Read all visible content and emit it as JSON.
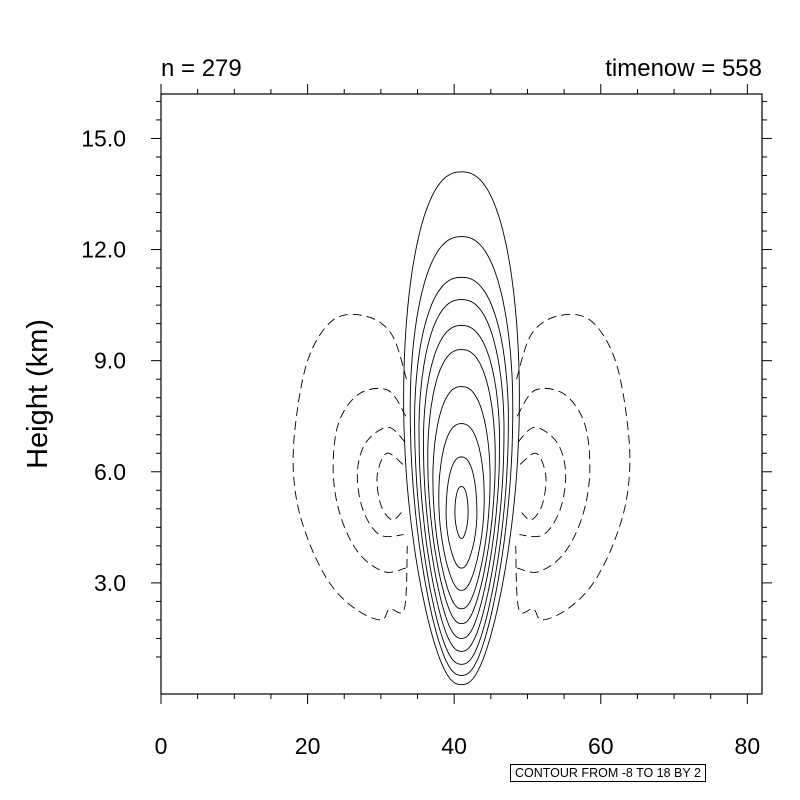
{
  "header": {
    "left_label": "n = 279",
    "right_label": "timenow = 558"
  },
  "contour_note": "CONTOUR FROM -8 TO 18 BY 2",
  "chart_data": {
    "type": "contour",
    "title": "",
    "xlabel": "",
    "ylabel": "Height (km)",
    "xlim": [
      0,
      82
    ],
    "ylim": [
      0.0,
      16.2
    ],
    "x_ticks": [
      {
        "value": 0,
        "label": "0"
      },
      {
        "value": 20,
        "label": "20"
      },
      {
        "value": 40,
        "label": "40"
      },
      {
        "value": 60,
        "label": "60"
      },
      {
        "value": 80,
        "label": "80"
      }
    ],
    "y_ticks": [
      {
        "value": 3.0,
        "label": "3.0"
      },
      {
        "value": 6.0,
        "label": "6.0"
      },
      {
        "value": 9.0,
        "label": "9.0"
      },
      {
        "value": 12.0,
        "label": "12.0"
      },
      {
        "value": 15.0,
        "label": "15.0"
      }
    ],
    "contour_levels": {
      "min": -8,
      "max": 18,
      "step": 2
    },
    "positive_contours": [
      {
        "cx": 41.0,
        "bottom": 0.25,
        "top": 14.1,
        "peak_h": 8.0,
        "half_width": 7.9
      },
      {
        "cx": 41.0,
        "bottom": 0.5,
        "top": 12.35,
        "peak_h": 7.7,
        "half_width": 7.0
      },
      {
        "cx": 41.0,
        "bottom": 0.8,
        "top": 11.25,
        "peak_h": 7.4,
        "half_width": 6.4
      },
      {
        "cx": 41.0,
        "bottom": 1.15,
        "top": 10.65,
        "peak_h": 7.1,
        "half_width": 5.8
      },
      {
        "cx": 41.0,
        "bottom": 1.5,
        "top": 9.95,
        "peak_h": 6.8,
        "half_width": 5.2
      },
      {
        "cx": 41.0,
        "bottom": 1.9,
        "top": 9.3,
        "peak_h": 6.4,
        "half_width": 4.6
      },
      {
        "cx": 41.0,
        "bottom": 2.3,
        "top": 8.3,
        "peak_h": 5.8,
        "half_width": 3.9
      },
      {
        "cx": 41.0,
        "bottom": 2.8,
        "top": 7.3,
        "peak_h": 5.3,
        "half_width": 3.1
      },
      {
        "cx": 41.0,
        "bottom": 3.4,
        "top": 6.4,
        "peak_h": 4.9,
        "half_width": 2.1
      },
      {
        "cx": 41.0,
        "bottom": 4.2,
        "top": 5.6,
        "peak_h": 4.9,
        "half_width": 0.9
      }
    ],
    "negative_contours": [
      [
        [
          33.5,
          8.5
        ],
        [
          31.5,
          9.7
        ],
        [
          28.0,
          10.2
        ],
        [
          23.5,
          10.1
        ],
        [
          20.0,
          9.0
        ],
        [
          18.2,
          7.0
        ],
        [
          18.3,
          5.5
        ],
        [
          20.0,
          4.2
        ],
        [
          23.0,
          3.0
        ],
        [
          26.5,
          2.3
        ],
        [
          30.0,
          2.0
        ],
        [
          31.2,
          2.3
        ],
        [
          33.2,
          2.3
        ],
        [
          33.6,
          4.0
        ]
      ],
      [
        [
          33.4,
          7.5
        ],
        [
          31.0,
          8.2
        ],
        [
          27.0,
          8.1
        ],
        [
          24.2,
          7.3
        ],
        [
          23.5,
          6.0
        ],
        [
          24.5,
          4.8
        ],
        [
          27.0,
          3.8
        ],
        [
          30.5,
          3.3
        ],
        [
          33.4,
          3.4
        ]
      ],
      [
        [
          33.3,
          6.8
        ],
        [
          31.0,
          7.2
        ],
        [
          28.0,
          6.8
        ],
        [
          26.8,
          6.0
        ],
        [
          27.5,
          5.0
        ],
        [
          29.8,
          4.3
        ],
        [
          33.1,
          4.3
        ]
      ],
      [
        [
          33.0,
          6.2
        ],
        [
          30.8,
          6.5
        ],
        [
          29.5,
          5.9
        ],
        [
          30.0,
          5.1
        ],
        [
          31.5,
          4.7
        ],
        [
          32.8,
          4.9
        ]
      ],
      [
        [
          48.5,
          8.5
        ],
        [
          50.5,
          9.7
        ],
        [
          54.0,
          10.2
        ],
        [
          58.5,
          10.1
        ],
        [
          62.0,
          9.0
        ],
        [
          63.8,
          7.0
        ],
        [
          63.7,
          5.5
        ],
        [
          62.0,
          4.2
        ],
        [
          59.0,
          3.0
        ],
        [
          55.5,
          2.3
        ],
        [
          52.0,
          2.0
        ],
        [
          50.8,
          2.3
        ],
        [
          48.8,
          2.3
        ],
        [
          48.4,
          4.0
        ]
      ],
      [
        [
          48.6,
          7.5
        ],
        [
          51.0,
          8.2
        ],
        [
          55.0,
          8.1
        ],
        [
          57.8,
          7.3
        ],
        [
          58.5,
          6.0
        ],
        [
          57.5,
          4.8
        ],
        [
          55.0,
          3.8
        ],
        [
          51.5,
          3.3
        ],
        [
          48.6,
          3.4
        ]
      ],
      [
        [
          48.7,
          6.8
        ],
        [
          51.0,
          7.2
        ],
        [
          54.0,
          6.8
        ],
        [
          55.2,
          6.0
        ],
        [
          54.5,
          5.0
        ],
        [
          52.2,
          4.3
        ],
        [
          48.9,
          4.3
        ]
      ],
      [
        [
          49.0,
          6.2
        ],
        [
          51.2,
          6.5
        ],
        [
          52.5,
          5.9
        ],
        [
          52.0,
          5.1
        ],
        [
          50.5,
          4.7
        ],
        [
          49.2,
          4.9
        ]
      ]
    ]
  }
}
